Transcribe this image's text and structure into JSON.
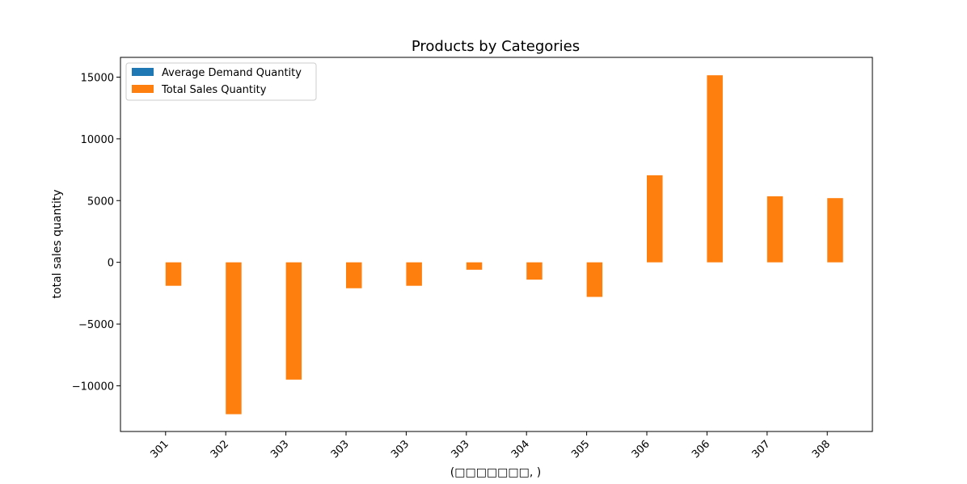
{
  "chart_data": {
    "type": "bar",
    "title": "Products by Categories",
    "xlabel": "(□□□□□□□, )",
    "ylabel": "total sales quantity",
    "categories": [
      "301",
      "302",
      "303",
      "303",
      "303",
      "303",
      "304",
      "305",
      "306",
      "306",
      "307",
      "308"
    ],
    "series": [
      {
        "name": "Average Demand Quantity",
        "color": "#1f77b4",
        "values": [
          0,
          0,
          0,
          0,
          0,
          0,
          0,
          0,
          0,
          0,
          0,
          0
        ]
      },
      {
        "name": "Total Sales Quantity",
        "color": "#ff7f0e",
        "values": [
          -1900,
          -12300,
          -9500,
          -2100,
          -1900,
          -600,
          -1400,
          -2800,
          7050,
          15150,
          5350,
          5200
        ]
      }
    ],
    "ylim": [
      -13700,
      16600
    ],
    "yticks": [
      -10000,
      -5000,
      0,
      5000,
      10000,
      15000
    ],
    "ytick_labels": [
      "−10000",
      "−5000",
      "0",
      "5000",
      "10000",
      "15000"
    ],
    "grid": false,
    "legend_position": "top-left"
  }
}
